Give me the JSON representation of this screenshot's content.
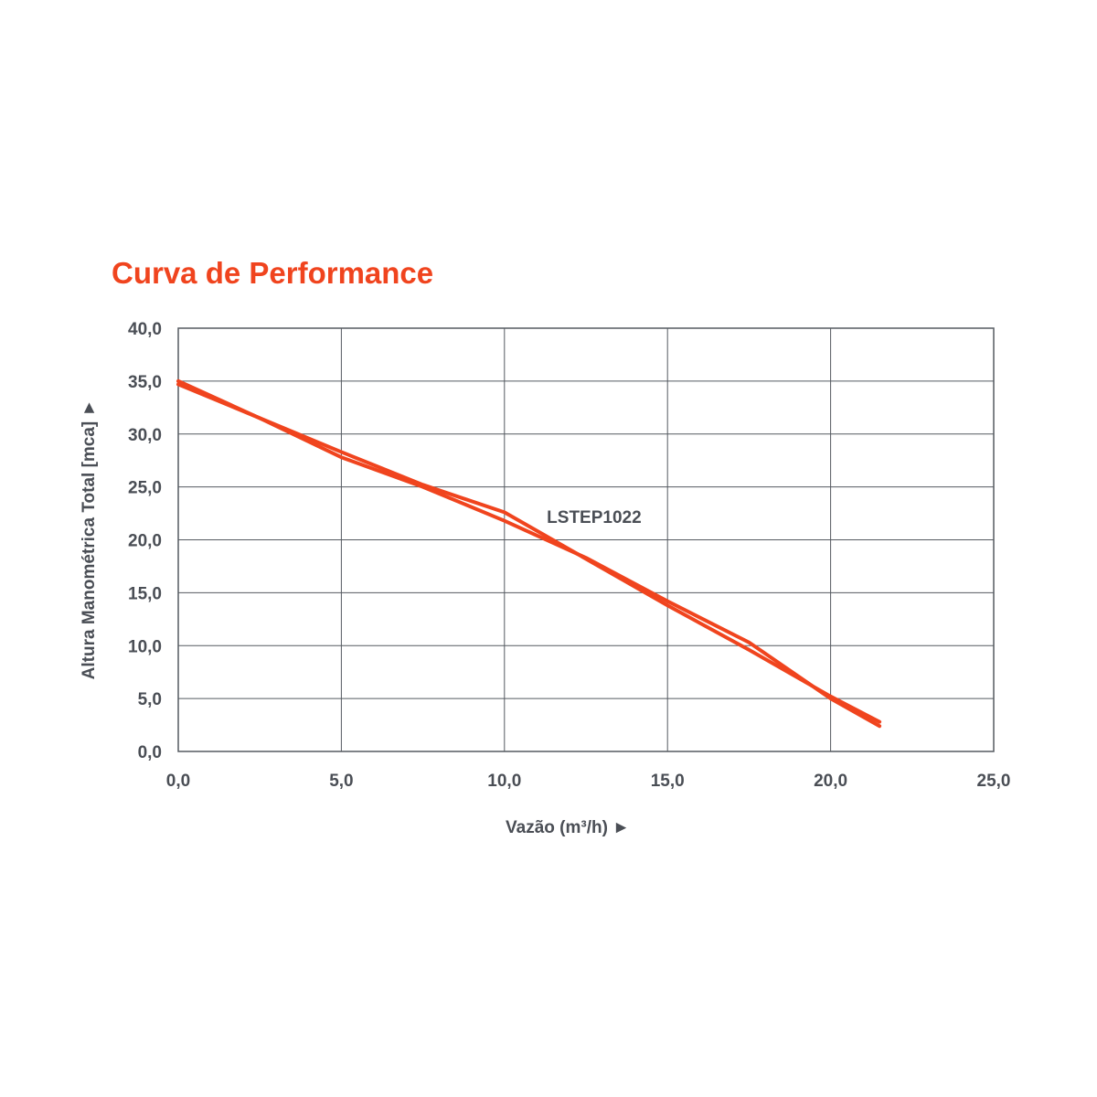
{
  "chart_data": {
    "type": "line",
    "title": "Curva de Performance",
    "xlabel": "Vazão (m³/h)",
    "ylabel": "Altura Manométrica Total [mca]",
    "x_arrow": "►",
    "y_arrow": "►",
    "xlim": [
      0,
      25
    ],
    "ylim": [
      0,
      40
    ],
    "xticks": [
      0,
      5,
      10,
      15,
      20,
      25
    ],
    "yticks": [
      0,
      5,
      10,
      15,
      20,
      25,
      30,
      35,
      40
    ],
    "xtick_labels": [
      "0,0",
      "5,0",
      "10,0",
      "15,0",
      "20,0",
      "25,0"
    ],
    "ytick_labels": [
      "0,0",
      "5,0",
      "10,0",
      "15,0",
      "20,0",
      "25,0",
      "30,0",
      "35,0",
      "40,0"
    ],
    "grid": true,
    "line_color": "#f0441e",
    "series": [
      {
        "name": "LSTEP1022",
        "x": [
          0,
          2.5,
          5,
          7.5,
          10,
          12.5,
          15,
          17.5,
          20,
          21.5
        ],
        "y": [
          35,
          31.5,
          27.8,
          25,
          21.8,
          18.3,
          14.2,
          10.3,
          5,
          2.4
        ]
      },
      {
        "x": [
          0,
          2.5,
          5,
          7.5,
          10,
          12.5,
          15,
          17.5,
          20,
          21.5
        ],
        "y": [
          34.7,
          31.5,
          28.3,
          25.2,
          22.6,
          18.2,
          13.8,
          9.6,
          5.2,
          2.8
        ]
      }
    ],
    "annotation": {
      "text": "LSTEP1022",
      "x": 11.3,
      "y": 22.2
    }
  }
}
